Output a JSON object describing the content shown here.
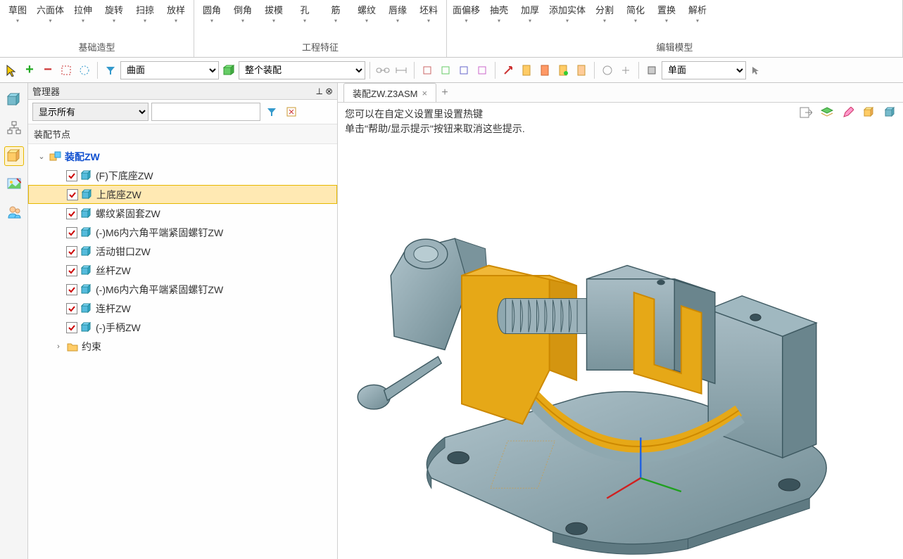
{
  "ribbon": {
    "groups": [
      {
        "label": "基础造型",
        "items": [
          "草图",
          "六面体",
          "拉伸",
          "旋转",
          "扫掠",
          "放样"
        ]
      },
      {
        "label": "工程特征",
        "items": [
          "圆角",
          "倒角",
          "拔模",
          "孔",
          "筋",
          "螺纹",
          "唇缘",
          "坯料"
        ]
      },
      {
        "label": "编辑模型",
        "items": [
          "面偏移",
          "抽壳",
          "加厚",
          "添加实体",
          "分割",
          "简化",
          "置换",
          "解析"
        ]
      }
    ]
  },
  "toolbar": {
    "select1": "曲面",
    "select2": "整个装配",
    "select3": "单面"
  },
  "manager": {
    "title": "管理器",
    "filter_label": "显示所有",
    "tree_header": "装配节点",
    "root": "装配ZW",
    "items": [
      {
        "label": "(F)下底座ZW",
        "selected": false
      },
      {
        "label": "上底座ZW",
        "selected": true
      },
      {
        "label": "螺纹紧固套ZW",
        "selected": false
      },
      {
        "label": "(-)M6内六角平端紧固螺钉ZW",
        "selected": false
      },
      {
        "label": "活动钳口ZW",
        "selected": false
      },
      {
        "label": "丝杆ZW",
        "selected": false
      },
      {
        "label": "(-)M6内六角平端紧固螺钉ZW",
        "selected": false
      },
      {
        "label": "连杆ZW",
        "selected": false
      },
      {
        "label": "(-)手柄ZW",
        "selected": false
      }
    ],
    "constraint": "约束"
  },
  "tab": {
    "title": "装配ZW.Z3ASM"
  },
  "tips": {
    "line1": "您可以在自定义设置里设置热键",
    "line2": "单击\"帮助/显示提示\"按钮来取消这些提示."
  },
  "colors": {
    "steel": "#8fa8b0",
    "steel_light": "#b0c4cc",
    "steel_dark": "#5f7a82",
    "highlight": "#e6a817",
    "highlight_edge": "#cc8800"
  }
}
